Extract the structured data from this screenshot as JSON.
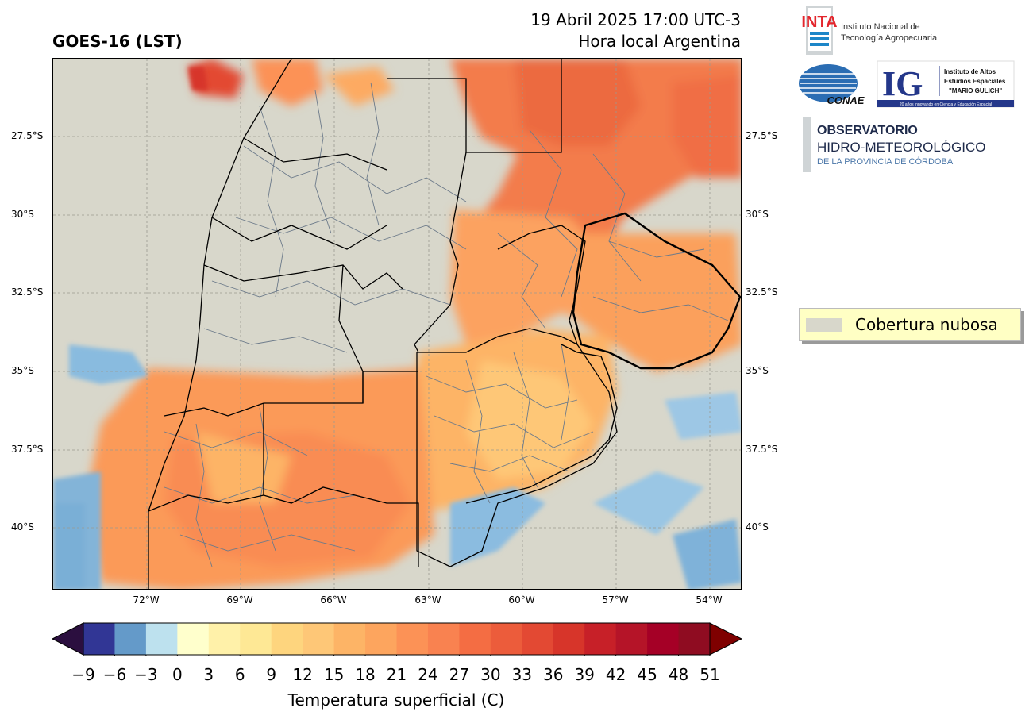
{
  "header": {
    "product": "GOES-16 (LST)",
    "datetime": "19 Abril 2025 17:00 UTC-3",
    "local_time_label": "Hora local Argentina"
  },
  "map": {
    "lat_labels": [
      "27.5°S",
      "30°S",
      "32.5°S",
      "35°S",
      "37.5°S",
      "40°S"
    ],
    "lon_labels": [
      "72°W",
      "69°W",
      "66°W",
      "63°W",
      "60°W",
      "57°W",
      "54°W"
    ],
    "cloud_color": "#d8d7cb"
  },
  "logos": {
    "inta_mark": "INTA",
    "inta_name_1": "Instituto Nacional de",
    "inta_name_2": "Tecnología Agropecuaria",
    "conae": "CONAE",
    "ig_mark": "IG",
    "ig_name_1": "Instituto de Altos",
    "ig_name_2": "Estudios Espaciales",
    "ig_name_3": "\"MARIO GULICH\"",
    "ig_tagline": "20 años innovando en Ciencia y Educación Espacial",
    "obs_1": "OBSERVATORIO",
    "obs_2": "HIDRO-METEOROLÓGICO",
    "obs_3": "DE LA PROVINCIA DE CÓRDOBA"
  },
  "legend": {
    "label": "Cobertura nubosa"
  },
  "colorbar": {
    "ticks": [
      "−9",
      "−6",
      "−3",
      "0",
      "3",
      "6",
      "9",
      "12",
      "15",
      "18",
      "21",
      "24",
      "27",
      "30",
      "33",
      "36",
      "39",
      "42",
      "45",
      "48",
      "51"
    ],
    "colors": [
      "#313695",
      "#649ac9",
      "#bde1ee",
      "#ffffcc",
      "#fff1a9",
      "#fee895",
      "#fed57e",
      "#fec777",
      "#fdb466",
      "#fda55e",
      "#fc9256",
      "#f98250",
      "#f46d43",
      "#ec5c3b",
      "#e34933",
      "#d7352a",
      "#c72028",
      "#b51428",
      "#a50026",
      "#8f0c21"
    ],
    "under_color": "#2b0f3f",
    "over_color": "#7f0000",
    "label": "Temperatura superficial (C)"
  }
}
